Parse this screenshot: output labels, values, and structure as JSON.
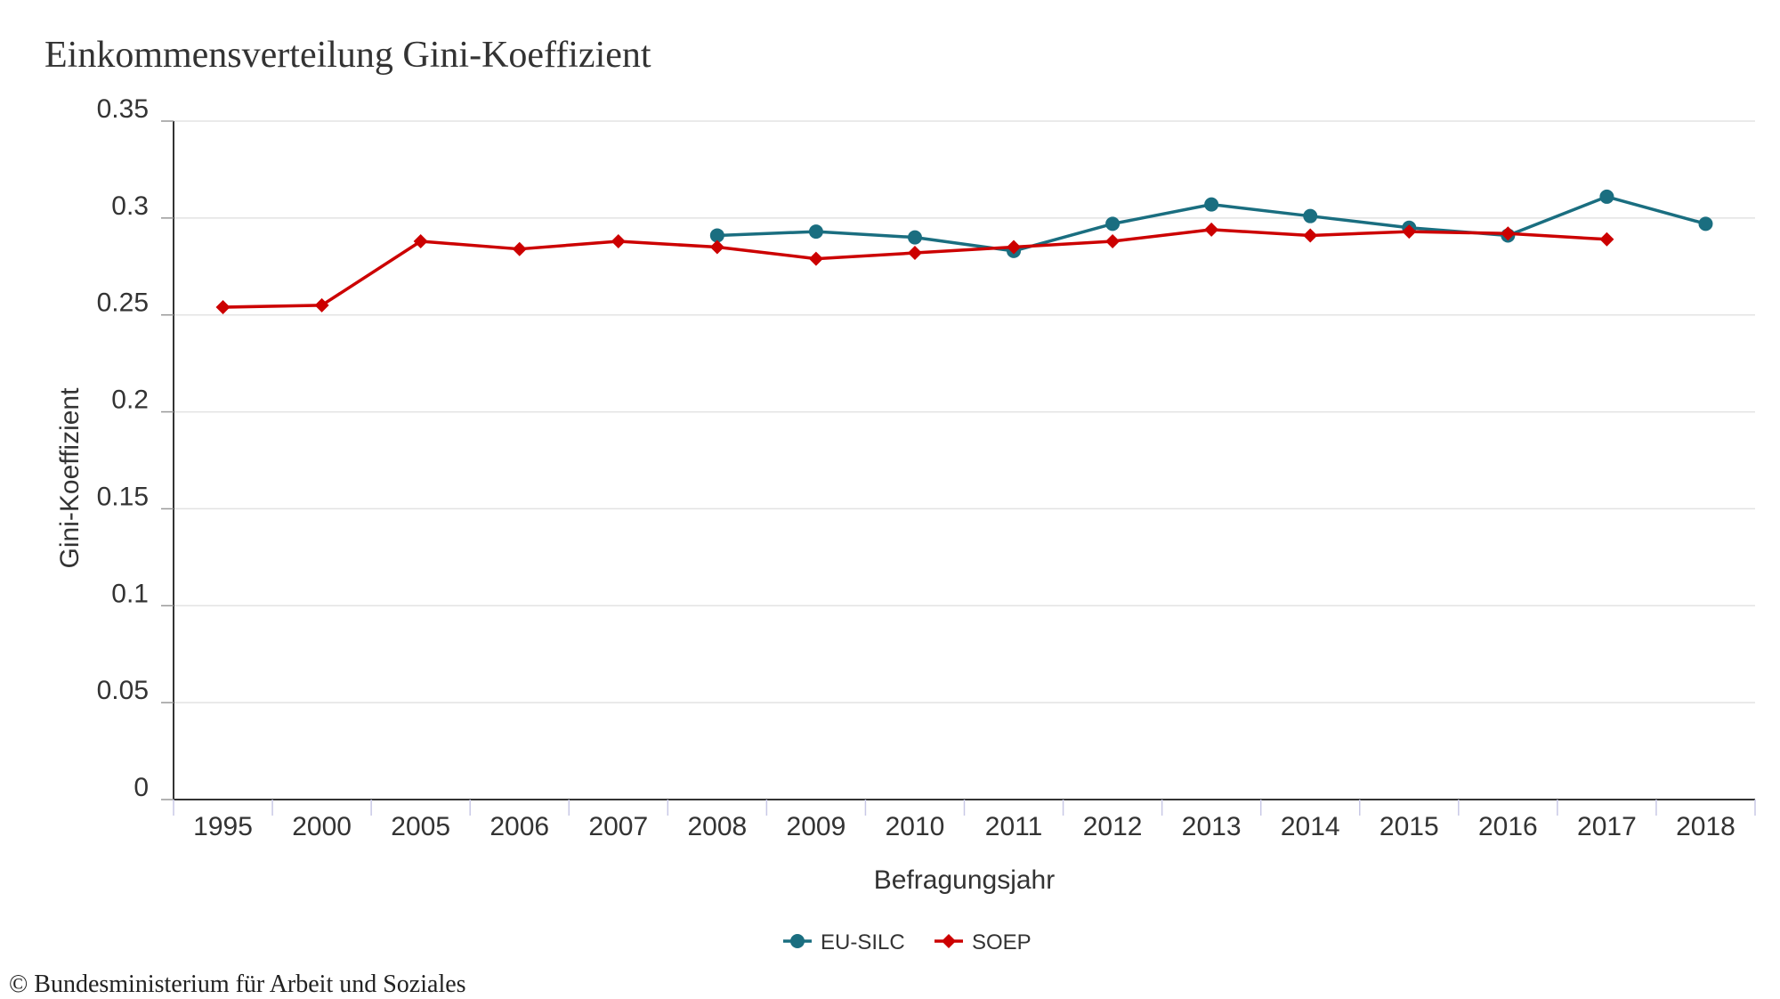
{
  "title": "Einkommensverteilung Gini-Koeffizient",
  "footer": "© Bundesministerium für Arbeit und Soziales",
  "chart_data": {
    "type": "line",
    "title": "Einkommensverteilung Gini-Koeffizient",
    "xlabel": "Befragungsjahr",
    "ylabel": "Gini-Koeffizient",
    "categories": [
      "1995",
      "2000",
      "2005",
      "2006",
      "2007",
      "2008",
      "2009",
      "2010",
      "2011",
      "2012",
      "2013",
      "2014",
      "2015",
      "2016",
      "2017",
      "2018"
    ],
    "y_ticks": [
      "0",
      "0.05",
      "0.1",
      "0.15",
      "0.2",
      "0.25",
      "0.3",
      "0.35"
    ],
    "ylim": [
      0,
      0.35
    ],
    "grid": true,
    "legend_position": "bottom-center",
    "series": [
      {
        "name": "EU-SILC",
        "color": "#1a6e80",
        "marker": "circle",
        "values": [
          null,
          null,
          null,
          null,
          null,
          0.291,
          0.293,
          0.29,
          0.283,
          0.297,
          0.307,
          0.301,
          0.295,
          0.291,
          0.311,
          0.297
        ]
      },
      {
        "name": "SOEP",
        "color": "#cc0000",
        "marker": "diamond",
        "values": [
          0.254,
          0.255,
          0.288,
          0.284,
          0.288,
          0.285,
          0.279,
          0.282,
          0.285,
          0.288,
          0.294,
          0.291,
          0.293,
          0.292,
          0.289,
          null
        ]
      }
    ]
  }
}
